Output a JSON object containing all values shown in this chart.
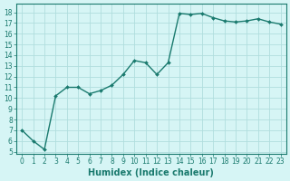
{
  "x": [
    0,
    1,
    2,
    3,
    4,
    5,
    6,
    7,
    8,
    9,
    10,
    11,
    12,
    13,
    14,
    15,
    16,
    17,
    18,
    19,
    20,
    21,
    22,
    23
  ],
  "y": [
    7.0,
    6.0,
    5.2,
    10.2,
    11.0,
    11.0,
    10.4,
    10.7,
    11.2,
    12.2,
    13.5,
    13.3,
    12.2,
    13.3,
    17.9,
    17.8,
    17.9,
    17.5,
    17.2,
    17.1,
    17.2,
    17.4,
    17.1,
    16.9
  ],
  "line_color": "#1a7a6e",
  "marker": "D",
  "marker_size": 2.0,
  "bg_color": "#d6f5f5",
  "grid_color": "#b0dede",
  "xlabel": "Humidex (Indice chaleur)",
  "ylim": [
    4.8,
    18.8
  ],
  "xlim": [
    -0.5,
    23.5
  ],
  "yticks": [
    5,
    6,
    7,
    8,
    9,
    10,
    11,
    12,
    13,
    14,
    15,
    16,
    17,
    18
  ],
  "xticks": [
    0,
    1,
    2,
    3,
    4,
    5,
    6,
    7,
    8,
    9,
    10,
    11,
    12,
    13,
    14,
    15,
    16,
    17,
    18,
    19,
    20,
    21,
    22,
    23
  ],
  "tick_fontsize": 5.5,
  "xlabel_fontsize": 7,
  "line_width": 1.0
}
